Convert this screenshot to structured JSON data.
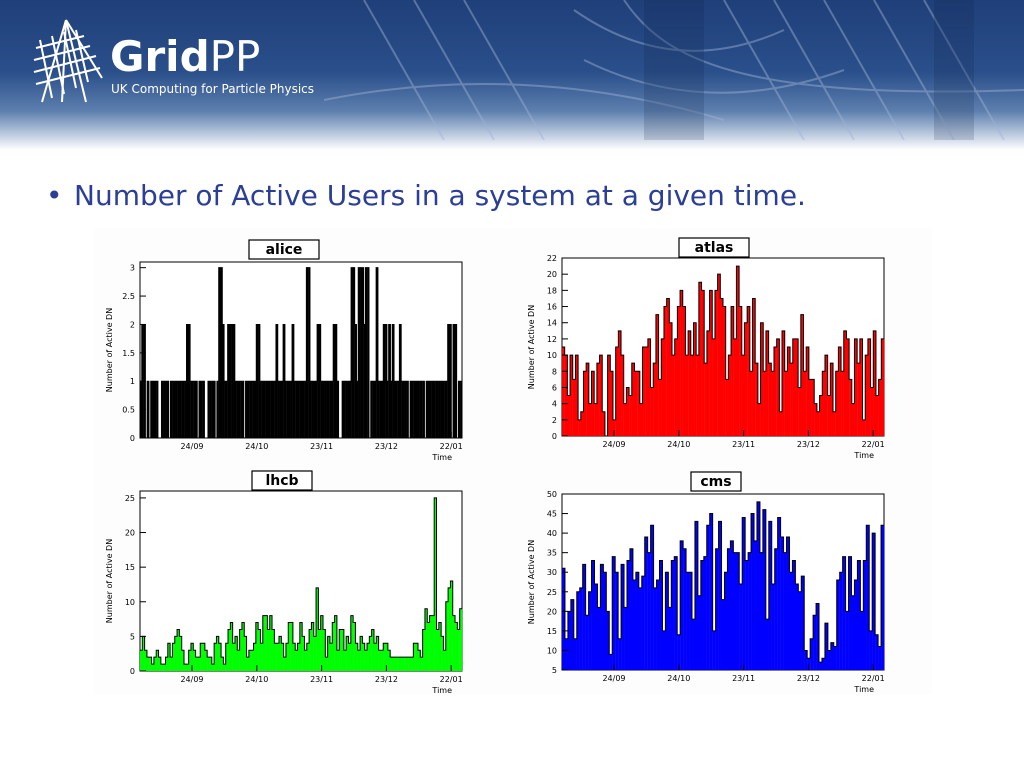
{
  "header": {
    "brand_bold": "Grid",
    "brand_light": "PP",
    "tagline": "UK Computing for Particle Physics"
  },
  "content": {
    "bullet_symbol": "•",
    "bullet_text": "Number of Active Users in a system at a given time."
  },
  "chart_data": [
    {
      "type": "bar",
      "title": "alice",
      "xlabel": "Time",
      "ylabel": "Number of Active DN",
      "ylim": [
        0,
        3.1
      ],
      "yticks": [
        0,
        0.5,
        1,
        1.5,
        2,
        2.5,
        3
      ],
      "xticks": [
        "24/09",
        "24/10",
        "23/11",
        "23/12",
        "22/01"
      ],
      "color": "#000000",
      "values": [
        1,
        2,
        2,
        0,
        1,
        0,
        1,
        1,
        1,
        1,
        0,
        0,
        1,
        1,
        1,
        1,
        0,
        1,
        1,
        1,
        1,
        1,
        1,
        1,
        1,
        1,
        2,
        2,
        1,
        1,
        1,
        1,
        0,
        1,
        1,
        1,
        0,
        0,
        1,
        1,
        1,
        1,
        0,
        1,
        3,
        3,
        2,
        1,
        1,
        2,
        2,
        2,
        2,
        1,
        1,
        1,
        1,
        1,
        0,
        1,
        1,
        1,
        1,
        1,
        1,
        2,
        2,
        1,
        1,
        1,
        1,
        1,
        1,
        1,
        1,
        1,
        2,
        1,
        1,
        1,
        2,
        1,
        1,
        1,
        1,
        2,
        1,
        1,
        1,
        1,
        1,
        1,
        1,
        3,
        3,
        1,
        1,
        1,
        1,
        2,
        2,
        1,
        1,
        1,
        1,
        1,
        1,
        1,
        2,
        2,
        1,
        0,
        0,
        1,
        1,
        1,
        1,
        1,
        3,
        3,
        2,
        1,
        3,
        3,
        3,
        2,
        3,
        3,
        0,
        1,
        1,
        1,
        3,
        1,
        1,
        1,
        2,
        2,
        1,
        2,
        1,
        2,
        1,
        1,
        1,
        2,
        1,
        1,
        1,
        1,
        0,
        1,
        1,
        1,
        1,
        1,
        1,
        1,
        1,
        0,
        1,
        1,
        1,
        1,
        1,
        1,
        1,
        1,
        1,
        1,
        1,
        1,
        2,
        2,
        0,
        2,
        2,
        0,
        1,
        1
      ]
    },
    {
      "type": "bar",
      "title": "atlas",
      "xlabel": "Time",
      "ylabel": "Number of Active DN",
      "ylim": [
        0,
        22
      ],
      "yticks": [
        0,
        2,
        4,
        6,
        8,
        10,
        12,
        14,
        16,
        18,
        20,
        22
      ],
      "xticks": [
        "24/09",
        "24/10",
        "23/11",
        "23/12",
        "22/01"
      ],
      "color": "#ff0000",
      "values": [
        11,
        10,
        5,
        10,
        7,
        10,
        2,
        3,
        8,
        9,
        4,
        8,
        4,
        9,
        10,
        3,
        0,
        10,
        8,
        2,
        11,
        13,
        10,
        4,
        6,
        5,
        9,
        8,
        8,
        4,
        11,
        11,
        12,
        6,
        9,
        15,
        7,
        12,
        16,
        17,
        14,
        10,
        12,
        16,
        18,
        16,
        10,
        13,
        10,
        14,
        10,
        19,
        18,
        9,
        13,
        18,
        12,
        18,
        20,
        17,
        16,
        7,
        10,
        16,
        12,
        21,
        16,
        10,
        14,
        16,
        8,
        17,
        9,
        4,
        14,
        8,
        13,
        9,
        8,
        11,
        12,
        3,
        13,
        8,
        11,
        9,
        12,
        12,
        6,
        15,
        8,
        11,
        7,
        7,
        4,
        3,
        5,
        8,
        10,
        5,
        9,
        3,
        8,
        11,
        8,
        13,
        12,
        7,
        4,
        12,
        9,
        12,
        2,
        10,
        12,
        6,
        13,
        5,
        7,
        12
      ]
    },
    {
      "type": "bar",
      "title": "lhcb",
      "xlabel": "Time",
      "ylabel": "Number of Active DN",
      "ylim": [
        0,
        26
      ],
      "yticks": [
        0,
        5,
        10,
        15,
        20,
        25
      ],
      "xticks": [
        "24/09",
        "24/10",
        "23/11",
        "23/12",
        "22/01"
      ],
      "color": "#00ff00",
      "values": [
        3,
        5,
        3,
        2,
        2,
        1,
        2,
        3,
        2,
        1,
        1,
        2,
        4,
        2,
        4,
        5,
        6,
        5,
        3,
        1,
        1,
        3,
        4,
        3,
        2,
        2,
        4,
        4,
        3,
        2,
        2,
        1,
        4,
        5,
        4,
        2,
        1,
        4,
        6,
        7,
        4,
        5,
        3,
        6,
        7,
        5,
        2,
        3,
        3,
        4,
        7,
        6,
        4,
        8,
        8,
        6,
        8,
        6,
        4,
        4,
        5,
        4,
        2,
        4,
        7,
        7,
        4,
        3,
        4,
        7,
        5,
        3,
        4,
        6,
        7,
        5,
        12,
        6,
        8,
        6,
        2,
        5,
        4,
        7,
        8,
        3,
        6,
        6,
        3,
        5,
        4,
        8,
        7,
        4,
        3,
        5,
        4,
        3,
        4,
        5,
        6,
        4,
        5,
        3,
        3,
        4,
        4,
        3,
        2,
        2,
        2,
        2,
        2,
        2,
        2,
        2,
        2,
        2,
        4,
        4,
        3,
        2,
        6,
        9,
        7,
        8,
        8,
        25,
        6,
        7,
        5,
        3,
        10,
        12,
        13,
        8,
        7,
        6,
        9
      ]
    },
    {
      "type": "bar",
      "title": "cms",
      "xlabel": "Time",
      "ylabel": "Number of Active DN",
      "ylim": [
        5,
        50
      ],
      "yticks": [
        5,
        10,
        15,
        20,
        25,
        30,
        35,
        40,
        45,
        50
      ],
      "xticks": [
        "24/09",
        "24/10",
        "23/11",
        "23/12",
        "22/01"
      ],
      "color": "#0000ff",
      "values": [
        31,
        13,
        20,
        23,
        13,
        25,
        26,
        32,
        19,
        25,
        33,
        27,
        21,
        32,
        30,
        20,
        9,
        34,
        30,
        13,
        32,
        21,
        33,
        36,
        28,
        30,
        26,
        29,
        39,
        35,
        42,
        26,
        28,
        33,
        15,
        30,
        21,
        33,
        34,
        14,
        38,
        36,
        30,
        30,
        18,
        43,
        24,
        33,
        34,
        42,
        45,
        15,
        36,
        43,
        23,
        30,
        36,
        38,
        35,
        35,
        27,
        44,
        33,
        35,
        45,
        38,
        48,
        35,
        46,
        18,
        43,
        27,
        36,
        44,
        39,
        35,
        39,
        30,
        33,
        27,
        25,
        29,
        10,
        8,
        13,
        19,
        22,
        7,
        8,
        17,
        10,
        12,
        11,
        28,
        30,
        34,
        20,
        34,
        24,
        28,
        33,
        20,
        33,
        42,
        15,
        40,
        14,
        11,
        42
      ]
    }
  ]
}
